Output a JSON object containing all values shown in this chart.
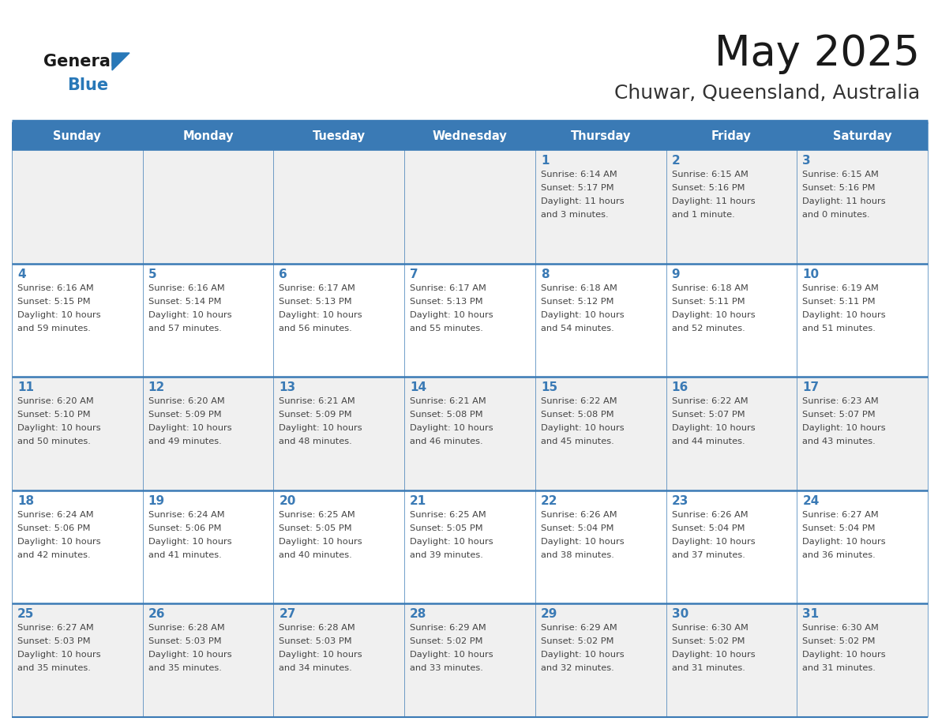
{
  "title": "May 2025",
  "subtitle": "Chuwar, Queensland, Australia",
  "days_of_week": [
    "Sunday",
    "Monday",
    "Tuesday",
    "Wednesday",
    "Thursday",
    "Friday",
    "Saturday"
  ],
  "header_bg_color": "#3a7ab5",
  "header_text_color": "#ffffff",
  "row_bg_odd": "#f0f0f0",
  "row_bg_even": "#ffffff",
  "day_number_color": "#3a7ab5",
  "cell_text_color": "#444444",
  "border_color": "#3a7ab5",
  "row_divider_color": "#3a7ab5",
  "title_color": "#1a1a1a",
  "subtitle_color": "#333333",
  "logo_general_color": "#1a1a1a",
  "logo_blue_color": "#2878b8",
  "calendar_data": [
    {
      "day": 1,
      "col": 4,
      "row": 0,
      "sunrise": "6:14 AM",
      "sunset": "5:17 PM",
      "daylight_h": "11 hours",
      "daylight_m": "and 3 minutes."
    },
    {
      "day": 2,
      "col": 5,
      "row": 0,
      "sunrise": "6:15 AM",
      "sunset": "5:16 PM",
      "daylight_h": "11 hours",
      "daylight_m": "and 1 minute."
    },
    {
      "day": 3,
      "col": 6,
      "row": 0,
      "sunrise": "6:15 AM",
      "sunset": "5:16 PM",
      "daylight_h": "11 hours",
      "daylight_m": "and 0 minutes."
    },
    {
      "day": 4,
      "col": 0,
      "row": 1,
      "sunrise": "6:16 AM",
      "sunset": "5:15 PM",
      "daylight_h": "10 hours",
      "daylight_m": "and 59 minutes."
    },
    {
      "day": 5,
      "col": 1,
      "row": 1,
      "sunrise": "6:16 AM",
      "sunset": "5:14 PM",
      "daylight_h": "10 hours",
      "daylight_m": "and 57 minutes."
    },
    {
      "day": 6,
      "col": 2,
      "row": 1,
      "sunrise": "6:17 AM",
      "sunset": "5:13 PM",
      "daylight_h": "10 hours",
      "daylight_m": "and 56 minutes."
    },
    {
      "day": 7,
      "col": 3,
      "row": 1,
      "sunrise": "6:17 AM",
      "sunset": "5:13 PM",
      "daylight_h": "10 hours",
      "daylight_m": "and 55 minutes."
    },
    {
      "day": 8,
      "col": 4,
      "row": 1,
      "sunrise": "6:18 AM",
      "sunset": "5:12 PM",
      "daylight_h": "10 hours",
      "daylight_m": "and 54 minutes."
    },
    {
      "day": 9,
      "col": 5,
      "row": 1,
      "sunrise": "6:18 AM",
      "sunset": "5:11 PM",
      "daylight_h": "10 hours",
      "daylight_m": "and 52 minutes."
    },
    {
      "day": 10,
      "col": 6,
      "row": 1,
      "sunrise": "6:19 AM",
      "sunset": "5:11 PM",
      "daylight_h": "10 hours",
      "daylight_m": "and 51 minutes."
    },
    {
      "day": 11,
      "col": 0,
      "row": 2,
      "sunrise": "6:20 AM",
      "sunset": "5:10 PM",
      "daylight_h": "10 hours",
      "daylight_m": "and 50 minutes."
    },
    {
      "day": 12,
      "col": 1,
      "row": 2,
      "sunrise": "6:20 AM",
      "sunset": "5:09 PM",
      "daylight_h": "10 hours",
      "daylight_m": "and 49 minutes."
    },
    {
      "day": 13,
      "col": 2,
      "row": 2,
      "sunrise": "6:21 AM",
      "sunset": "5:09 PM",
      "daylight_h": "10 hours",
      "daylight_m": "and 48 minutes."
    },
    {
      "day": 14,
      "col": 3,
      "row": 2,
      "sunrise": "6:21 AM",
      "sunset": "5:08 PM",
      "daylight_h": "10 hours",
      "daylight_m": "and 46 minutes."
    },
    {
      "day": 15,
      "col": 4,
      "row": 2,
      "sunrise": "6:22 AM",
      "sunset": "5:08 PM",
      "daylight_h": "10 hours",
      "daylight_m": "and 45 minutes."
    },
    {
      "day": 16,
      "col": 5,
      "row": 2,
      "sunrise": "6:22 AM",
      "sunset": "5:07 PM",
      "daylight_h": "10 hours",
      "daylight_m": "and 44 minutes."
    },
    {
      "day": 17,
      "col": 6,
      "row": 2,
      "sunrise": "6:23 AM",
      "sunset": "5:07 PM",
      "daylight_h": "10 hours",
      "daylight_m": "and 43 minutes."
    },
    {
      "day": 18,
      "col": 0,
      "row": 3,
      "sunrise": "6:24 AM",
      "sunset": "5:06 PM",
      "daylight_h": "10 hours",
      "daylight_m": "and 42 minutes."
    },
    {
      "day": 19,
      "col": 1,
      "row": 3,
      "sunrise": "6:24 AM",
      "sunset": "5:06 PM",
      "daylight_h": "10 hours",
      "daylight_m": "and 41 minutes."
    },
    {
      "day": 20,
      "col": 2,
      "row": 3,
      "sunrise": "6:25 AM",
      "sunset": "5:05 PM",
      "daylight_h": "10 hours",
      "daylight_m": "and 40 minutes."
    },
    {
      "day": 21,
      "col": 3,
      "row": 3,
      "sunrise": "6:25 AM",
      "sunset": "5:05 PM",
      "daylight_h": "10 hours",
      "daylight_m": "and 39 minutes."
    },
    {
      "day": 22,
      "col": 4,
      "row": 3,
      "sunrise": "6:26 AM",
      "sunset": "5:04 PM",
      "daylight_h": "10 hours",
      "daylight_m": "and 38 minutes."
    },
    {
      "day": 23,
      "col": 5,
      "row": 3,
      "sunrise": "6:26 AM",
      "sunset": "5:04 PM",
      "daylight_h": "10 hours",
      "daylight_m": "and 37 minutes."
    },
    {
      "day": 24,
      "col": 6,
      "row": 3,
      "sunrise": "6:27 AM",
      "sunset": "5:04 PM",
      "daylight_h": "10 hours",
      "daylight_m": "and 36 minutes."
    },
    {
      "day": 25,
      "col": 0,
      "row": 4,
      "sunrise": "6:27 AM",
      "sunset": "5:03 PM",
      "daylight_h": "10 hours",
      "daylight_m": "and 35 minutes."
    },
    {
      "day": 26,
      "col": 1,
      "row": 4,
      "sunrise": "6:28 AM",
      "sunset": "5:03 PM",
      "daylight_h": "10 hours",
      "daylight_m": "and 35 minutes."
    },
    {
      "day": 27,
      "col": 2,
      "row": 4,
      "sunrise": "6:28 AM",
      "sunset": "5:03 PM",
      "daylight_h": "10 hours",
      "daylight_m": "and 34 minutes."
    },
    {
      "day": 28,
      "col": 3,
      "row": 4,
      "sunrise": "6:29 AM",
      "sunset": "5:02 PM",
      "daylight_h": "10 hours",
      "daylight_m": "and 33 minutes."
    },
    {
      "day": 29,
      "col": 4,
      "row": 4,
      "sunrise": "6:29 AM",
      "sunset": "5:02 PM",
      "daylight_h": "10 hours",
      "daylight_m": "and 32 minutes."
    },
    {
      "day": 30,
      "col": 5,
      "row": 4,
      "sunrise": "6:30 AM",
      "sunset": "5:02 PM",
      "daylight_h": "10 hours",
      "daylight_m": "and 31 minutes."
    },
    {
      "day": 31,
      "col": 6,
      "row": 4,
      "sunrise": "6:30 AM",
      "sunset": "5:02 PM",
      "daylight_h": "10 hours",
      "daylight_m": "and 31 minutes."
    }
  ]
}
